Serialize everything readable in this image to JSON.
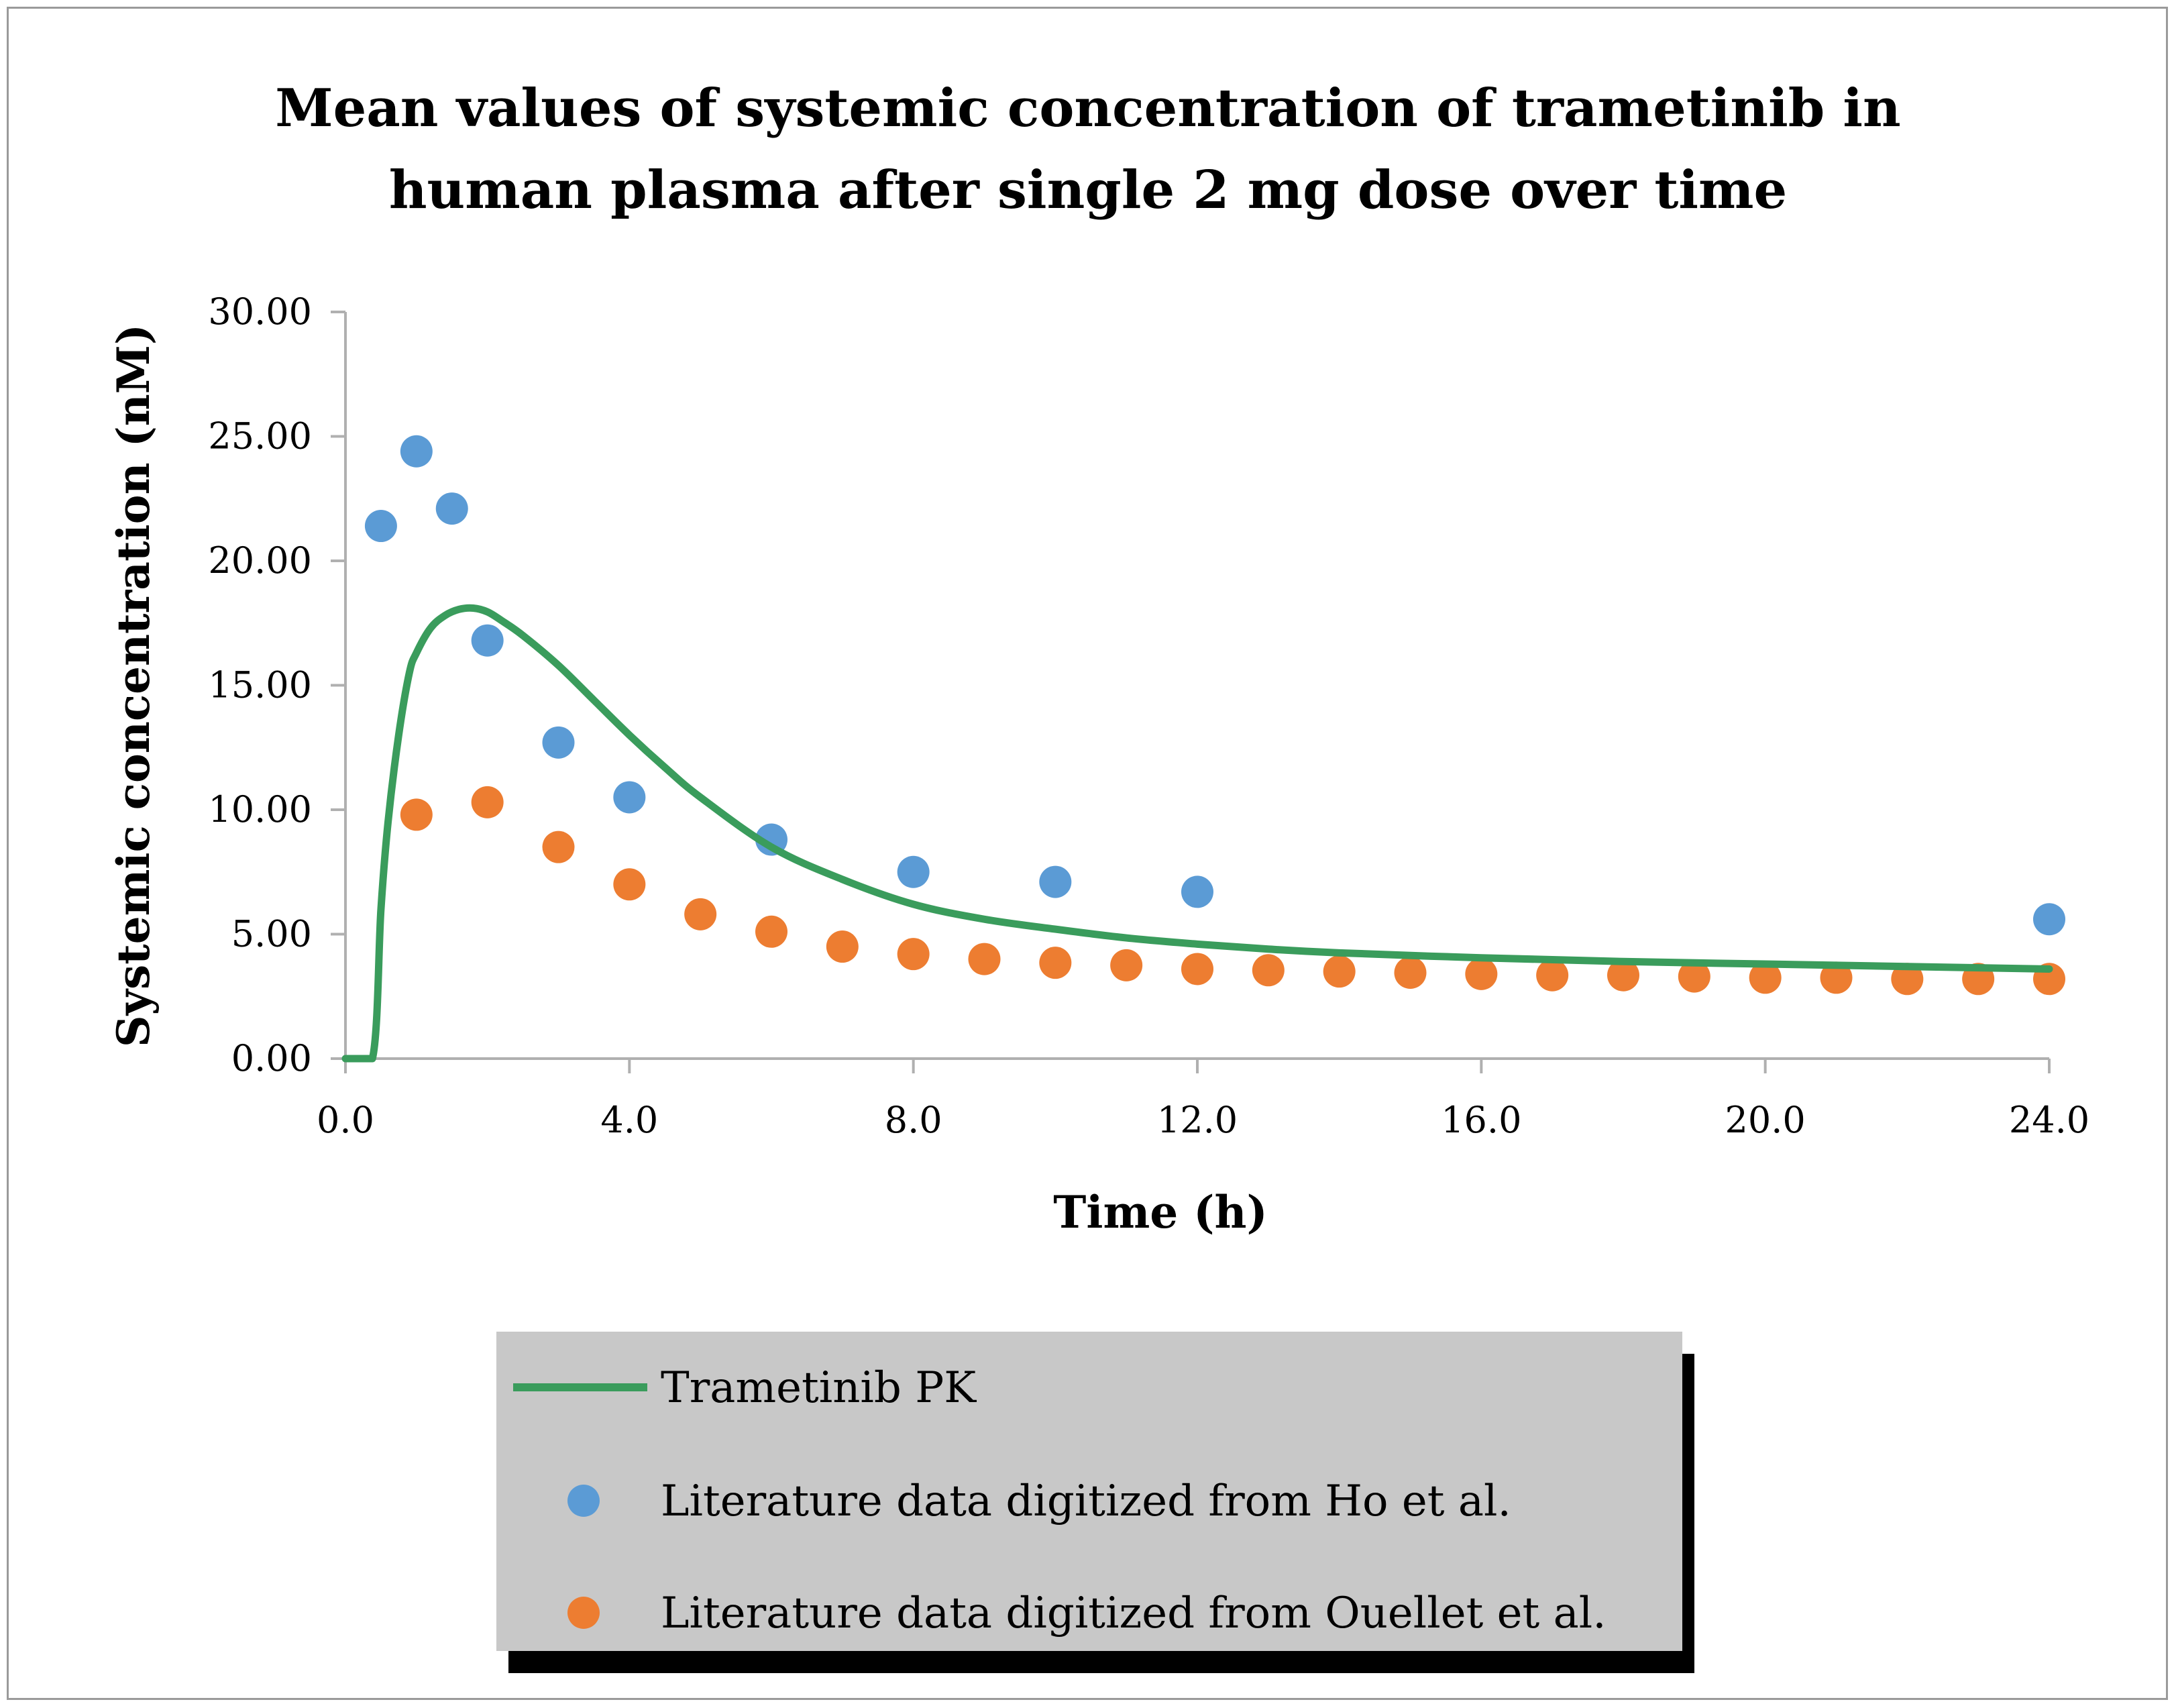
{
  "chart_data": {
    "type": "scatter",
    "title_lines": [
      "Mean values of systemic concentration of trametinib in",
      "human plasma after single 2 mg dose over time"
    ],
    "xlabel": "Time (h)",
    "ylabel": "Systemic concentration (nM)",
    "xlim": [
      0,
      24
    ],
    "ylim": [
      0,
      30
    ],
    "x_ticks": [
      0,
      4,
      8,
      12,
      16,
      20,
      24
    ],
    "x_tick_labels": [
      "0.0",
      "4.0",
      "8.0",
      "12.0",
      "16.0",
      "20.0",
      "24.0"
    ],
    "y_ticks": [
      0,
      5,
      10,
      15,
      20,
      25,
      30
    ],
    "y_tick_labels": [
      "0.00",
      "5.00",
      "10.00",
      "15.00",
      "20.00",
      "25.00",
      "30.00"
    ],
    "grid": false,
    "legend_position": "bottom",
    "series": [
      {
        "name": "Trametinib PK",
        "kind": "line",
        "color": "#3a9c5c",
        "x": [
          0,
          0.38,
          0.5,
          0.6,
          0.75,
          0.9,
          1.0,
          1.2,
          1.4,
          1.6,
          1.8,
          2.0,
          2.2,
          2.5,
          3.0,
          3.5,
          4.0,
          4.5,
          5.0,
          6.0,
          7.0,
          8.0,
          9.0,
          10.0,
          11.0,
          12.0,
          13.0,
          14.0,
          16.0,
          18.0,
          20.0,
          22.0,
          24.0
        ],
        "y": [
          0,
          0,
          6.0,
          9.5,
          13.0,
          15.5,
          16.3,
          17.3,
          17.8,
          18.05,
          18.1,
          17.95,
          17.6,
          17.0,
          15.8,
          14.4,
          13.0,
          11.7,
          10.5,
          8.5,
          7.2,
          6.2,
          5.6,
          5.2,
          4.85,
          4.6,
          4.4,
          4.25,
          4.05,
          3.9,
          3.8,
          3.7,
          3.6
        ]
      },
      {
        "name": "Literature data digitized from Ho et al.",
        "kind": "scatter",
        "color": "#5b9bd5",
        "x": [
          0.5,
          1.0,
          1.5,
          2.0,
          3.0,
          4.0,
          6.0,
          8.0,
          10.0,
          12.0,
          24.0
        ],
        "y": [
          21.4,
          24.4,
          22.1,
          16.8,
          12.7,
          10.5,
          8.8,
          7.5,
          7.1,
          6.7,
          5.6
        ]
      },
      {
        "name": "Literature data digitized from Ouellet et al.",
        "kind": "scatter",
        "color": "#ed7d31",
        "x": [
          1,
          2,
          3,
          4,
          5,
          6,
          7,
          8,
          9,
          10,
          11,
          12,
          13,
          14,
          15,
          16,
          17,
          18,
          19,
          20,
          21,
          22,
          23,
          24
        ],
        "y": [
          9.8,
          10.3,
          8.5,
          7.0,
          5.8,
          5.1,
          4.5,
          4.2,
          4.0,
          3.85,
          3.75,
          3.6,
          3.55,
          3.5,
          3.45,
          3.4,
          3.35,
          3.35,
          3.3,
          3.25,
          3.25,
          3.2,
          3.2,
          3.2
        ]
      }
    ]
  }
}
